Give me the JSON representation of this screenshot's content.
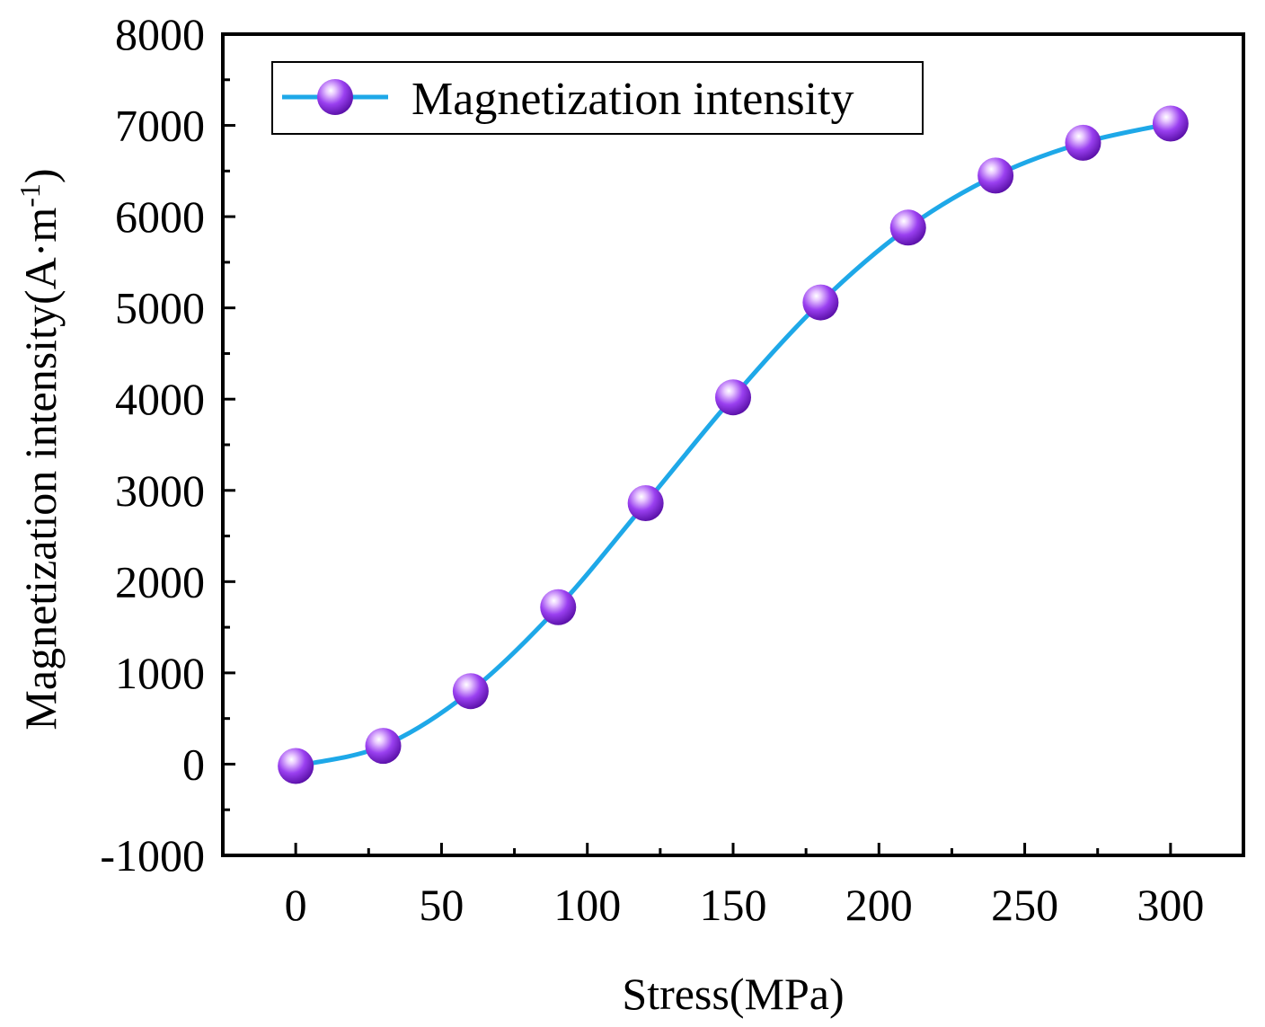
{
  "chart_data": {
    "type": "line",
    "title": "",
    "xlabel": "Stress(MPa)",
    "ylabel": {
      "text": "Magnetization intensity(A·m",
      "superscript": "-1",
      "suffix": ")"
    },
    "xlim": [
      -25,
      325
    ],
    "ylim": [
      -1000,
      8000
    ],
    "x_ticks": [
      0,
      50,
      100,
      150,
      200,
      250,
      300
    ],
    "y_ticks": [
      -1000,
      0,
      1000,
      2000,
      3000,
      4000,
      5000,
      6000,
      7000,
      8000
    ],
    "grid": false,
    "legend": {
      "position": "top-left",
      "entries": [
        "Magnetization intensity"
      ]
    },
    "series": [
      {
        "name": "Magnetization intensity",
        "line_color": "#1ea8e8",
        "marker_color": "#9a40f0",
        "x": [
          0,
          30,
          60,
          90,
          120,
          150,
          180,
          210,
          240,
          270,
          300
        ],
        "y": [
          -20,
          200,
          800,
          1720,
          2860,
          4020,
          5060,
          5880,
          6450,
          6810,
          7020
        ]
      }
    ]
  }
}
